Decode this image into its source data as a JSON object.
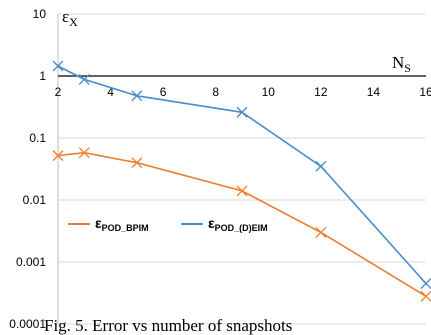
{
  "caption": "Fig. 5. Error vs number of snapshots",
  "chart_data": {
    "type": "line",
    "yscale": "log",
    "ylim": [
      0.0001,
      10
    ],
    "xlim": [
      2,
      16
    ],
    "xticks": [
      2,
      4,
      6,
      8,
      10,
      12,
      14,
      16
    ],
    "yticks": [
      0.0001,
      0.001,
      0.01,
      0.1,
      1,
      10
    ],
    "ytick_labels": [
      "0.0001",
      "0.001",
      "0.01",
      "0.1",
      "1",
      "10"
    ],
    "xtick_labels": [
      "2",
      "4",
      "6",
      "8",
      "10",
      "12",
      "14",
      "16"
    ],
    "xlabel": "N",
    "xlabel_sub": "S",
    "ylabel": "ε",
    "ylabel_sub": "X",
    "x_axis_at": 1,
    "grid": "horizontal",
    "legend_position": "lower-left",
    "series": [
      {
        "name": "ε",
        "name_sub": "POD_BPIM",
        "color": "#ED7D31",
        "marker": "x",
        "x": [
          2,
          3,
          5,
          9,
          12,
          16
        ],
        "y": [
          0.052,
          0.058,
          0.04,
          0.014,
          0.003,
          0.00028
        ]
      },
      {
        "name": "ε",
        "name_sub": "POD_(D)EIM",
        "color": "#4A8CC8",
        "marker": "x",
        "x": [
          2,
          3,
          5,
          9,
          12,
          16
        ],
        "y": [
          1.45,
          0.88,
          0.48,
          0.26,
          0.035,
          0.00045
        ]
      }
    ]
  }
}
